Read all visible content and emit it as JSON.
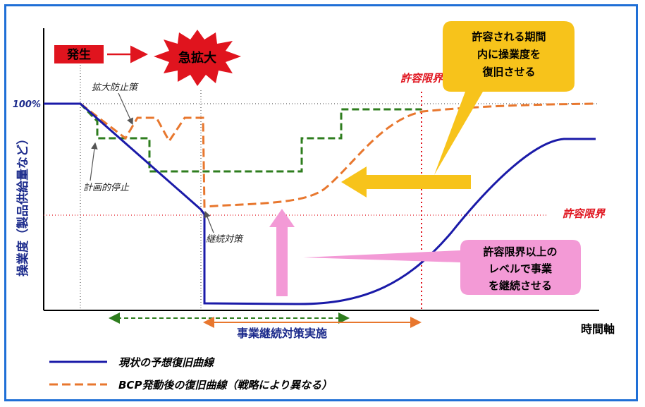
{
  "labels": {
    "occurrence": "発生",
    "rapid_expansion": "急拡大",
    "spread_prevention": "拡大防止策",
    "planned_stop": "計画的停止",
    "continuity_measures": "継続対策",
    "tolerance_limit_time": "許容限界",
    "tolerance_limit_level": "許容限界",
    "hundred_percent": "100%",
    "y_axis": "操業度（製品供給量など）",
    "x_axis": "時間軸",
    "bcm_implementation": "事業継続対策実施"
  },
  "callouts": {
    "yellow": [
      "許容される期間",
      "内に操業度を",
      "復旧させる"
    ],
    "pink": [
      "許容限界以上の",
      "レベルで事業",
      "を継続させる"
    ]
  },
  "legend": {
    "current_curve": "現状の予想復旧曲線",
    "bcp_curve": "BCP発動後の復旧曲線（戦略により異なる）"
  },
  "colors": {
    "current": "#1a1aa8",
    "bcp": "#e8772e",
    "green": "#2e7d1e",
    "red": "#e0141e",
    "yellow": "#f7c31b",
    "pink": "#f39ad6",
    "axis_label": "#1c2b8c"
  }
}
